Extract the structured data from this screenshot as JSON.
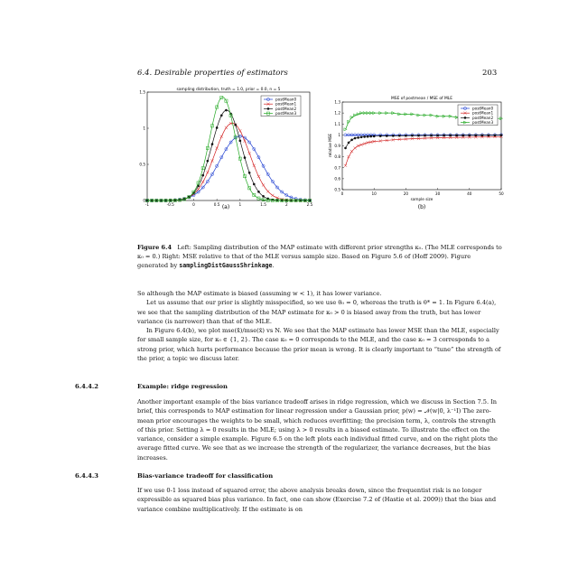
{
  "header": {
    "section": "6.4. Desirable properties of estimators",
    "page_number": "203"
  },
  "figure": {
    "panel_a_label": "(a)",
    "panel_b_label": "(b)",
    "caption_label": "Figure 6.4",
    "caption_text": "Left: Sampling distribution of the MAP estimate with different prior strengths κ₀. (The MLE corresponds to κ₀ = 0.) Right: MSE relative to that of the MLE versus sample size. Based on Figure 5.6 of (Hoff 2009). Figure generated by ",
    "caption_code": "samplingDistGaussShrinkage",
    "caption_end": "."
  },
  "chart_data": [
    {
      "type": "line",
      "title": "sampling distribution, truth = 1.0, prior = 0.0, n = 5",
      "xlim": [
        -1,
        2.5
      ],
      "ylim": [
        0,
        1.5
      ],
      "xticks": [
        "-1",
        "-0.5",
        "0",
        "0.5",
        "1",
        "1.5",
        "2",
        "2.5"
      ],
      "yticks": [
        "0",
        "0.5",
        "1",
        "1.5"
      ],
      "legend_position": "top-right",
      "series": [
        {
          "name": "postMean0",
          "color": "#1f3fd1",
          "marker": "circle",
          "mean": 1.0,
          "peak": 0.89
        },
        {
          "name": "postMean1",
          "color": "#d22020",
          "marker": "cross",
          "mean": 0.83,
          "peak": 1.07
        },
        {
          "name": "postMean2",
          "color": "#111111",
          "marker": "star",
          "mean": 0.71,
          "peak": 1.25
        },
        {
          "name": "postMean3",
          "color": "#22a822",
          "marker": "square",
          "mean": 0.625,
          "peak": 1.43
        }
      ]
    },
    {
      "type": "line",
      "title": "MSE of postmean / MSE of MLE",
      "xlabel": "sample size",
      "ylabel": "relative MSE",
      "xlim": [
        0,
        50
      ],
      "ylim": [
        0.5,
        1.3
      ],
      "xticks": [
        "0",
        "10",
        "20",
        "30",
        "40",
        "50"
      ],
      "yticks": [
        "0.5",
        "0.6",
        "0.7",
        "0.8",
        "0.9",
        "1",
        "1.1",
        "1.2",
        "1.3"
      ],
      "legend_position": "top-right",
      "x": [
        1,
        2,
        3,
        4,
        5,
        6,
        7,
        8,
        9,
        10,
        12,
        14,
        16,
        18,
        20,
        22,
        24,
        26,
        28,
        30,
        32,
        34,
        36,
        38,
        40,
        42,
        44,
        46,
        48,
        50
      ],
      "series": [
        {
          "name": "postMean0",
          "color": "#1f3fd1",
          "marker": "circle",
          "values": [
            1,
            1,
            1,
            1,
            1,
            1,
            1,
            1,
            1,
            1,
            1,
            1,
            1,
            1,
            1,
            1,
            1,
            1,
            1,
            1,
            1,
            1,
            1,
            1,
            1,
            1,
            1,
            1,
            1,
            1
          ]
        },
        {
          "name": "postMean1",
          "color": "#d22020",
          "marker": "cross",
          "values": [
            0.72,
            0.8,
            0.85,
            0.88,
            0.9,
            0.91,
            0.92,
            0.93,
            0.935,
            0.94,
            0.945,
            0.95,
            0.955,
            0.96,
            0.962,
            0.965,
            0.967,
            0.97,
            0.972,
            0.973,
            0.975,
            0.976,
            0.977,
            0.978,
            0.979,
            0.98,
            0.981,
            0.982,
            0.983,
            0.984
          ]
        },
        {
          "name": "postMean2",
          "color": "#111111",
          "marker": "star",
          "values": [
            0.88,
            0.93,
            0.955,
            0.97,
            0.975,
            0.98,
            0.983,
            0.985,
            0.987,
            0.988,
            0.99,
            0.991,
            0.992,
            0.993,
            0.993,
            0.994,
            0.994,
            0.995,
            0.995,
            0.995,
            0.996,
            0.996,
            0.996,
            0.996,
            0.997,
            0.997,
            0.997,
            0.997,
            0.997,
            0.998
          ]
        },
        {
          "name": "postMean3",
          "color": "#22a822",
          "marker": "triangle",
          "values": [
            1.05,
            1.12,
            1.16,
            1.18,
            1.19,
            1.2,
            1.2,
            1.2,
            1.2,
            1.2,
            1.2,
            1.2,
            1.2,
            1.19,
            1.19,
            1.19,
            1.18,
            1.18,
            1.18,
            1.17,
            1.17,
            1.17,
            1.16,
            1.16,
            1.16,
            1.16,
            1.15,
            1.15,
            1.15,
            1.15
          ]
        }
      ]
    }
  ],
  "body": {
    "p1": "So although the MAP estimate is biased (assuming w < 1), it has lower variance.",
    "p2": "Let us assume that our prior is slightly misspecified, so we use θ₀ = 0, whereas the truth is θ* = 1. In Figure 6.4(a), we see that the sampling distribution of the MAP estimate for κ₀ > 0 is biased away from the truth, but has lower variance (is narrower) than that of the MLE.",
    "p3": "In Figure 6.4(b), we plot mse(x̃)/mse(x̄) vs N. We see that the MAP estimate has lower MSE than the MLE, especially for small sample size, for κ₀ ∈ {1, 2}. The case κ₀ = 0 corresponds to the MLE, and the case κ₀ = 3 corresponds to a strong prior, which hurts performance because the prior mean is wrong. It is clearly important to “tune” the strength of the prior, a topic we discuss later.",
    "s1_num": "6.4.4.2",
    "s1_title": "Example: ridge regression",
    "s1_text": "Another important example of the bias variance tradeoff arises in ridge regression, which we discuss in Section 7.5. In brief, this corresponds to MAP estimation for linear regression under a Gaussian prior, p(w) = 𝒩(w|0, λ⁻¹I) The zero-mean prior encourages the weights to be small, which reduces overfitting; the precision term, λ, controls the strength of this prior. Setting λ = 0 results in the MLE; using λ > 0 results in a biased estimate. To illustrate the effect on the variance, consider a simple example. Figure 6.5 on the left plots each individual fitted curve, and on the right plots the average fitted curve. We see that as we increase the strength of the regularizer, the variance decreases, but the bias increases.",
    "s2_num": "6.4.4.3",
    "s2_title": "Bias-variance tradeoff for classification",
    "s2_text": "If we use 0-1 loss instead of squared error, the above analysis breaks down, since the frequentist risk is no longer expressible as squared bias plus variance. In fact, one can show (Exercise 7.2 of (Hastie et al. 2009)) that the bias and variance combine multiplicatively. If the estimate is on"
  }
}
